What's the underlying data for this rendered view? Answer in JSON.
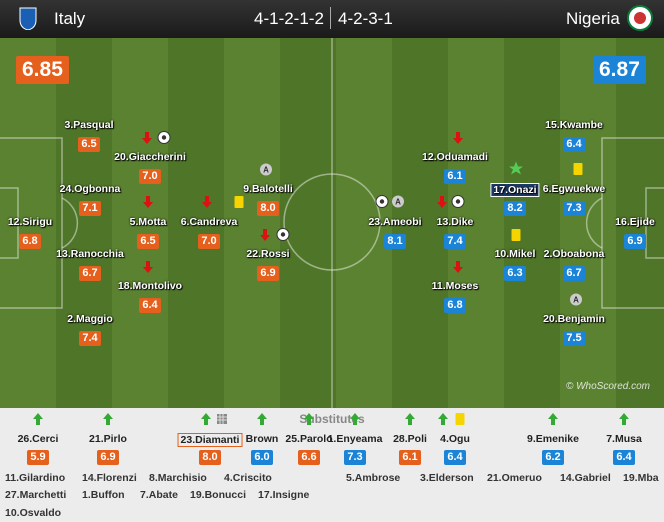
{
  "header": {
    "home_team": "Italy",
    "home_formation": "4-1-2-1-2",
    "away_formation": "4-2-3-1",
    "away_team": "Nigeria",
    "home_rating": "6.85",
    "away_rating": "6.87"
  },
  "home_players": [
    {
      "name": "3.Pasqual",
      "rating": "6.5"
    },
    {
      "name": "20.Giaccherini",
      "rating": "7.0"
    },
    {
      "name": "24.Ogbonna",
      "rating": "7.1"
    },
    {
      "name": "12.Sirigu",
      "rating": "6.8"
    },
    {
      "name": "5.Motta",
      "rating": "6.5"
    },
    {
      "name": "6.Candreva",
      "rating": "7.0"
    },
    {
      "name": "9.Balotelli",
      "rating": "8.0"
    },
    {
      "name": "13.Ranocchia",
      "rating": "6.7"
    },
    {
      "name": "22.Rossi",
      "rating": "6.9"
    },
    {
      "name": "18.Montolivo",
      "rating": "6.4"
    },
    {
      "name": "2.Maggio",
      "rating": "7.4"
    }
  ],
  "away_players": [
    {
      "name": "15.Kwambe",
      "rating": "6.4"
    },
    {
      "name": "12.Oduamadi",
      "rating": "6.1"
    },
    {
      "name": "17.Onazi",
      "rating": "8.2"
    },
    {
      "name": "6.Egwuekwe",
      "rating": "7.3"
    },
    {
      "name": "23.Ameobi",
      "rating": "8.1"
    },
    {
      "name": "13.Dike",
      "rating": "7.4"
    },
    {
      "name": "16.Ejide",
      "rating": "6.9"
    },
    {
      "name": "10.Mikel",
      "rating": "6.3"
    },
    {
      "name": "2.Oboabona",
      "rating": "6.7"
    },
    {
      "name": "11.Moses",
      "rating": "6.8"
    },
    {
      "name": "20.Benjamin",
      "rating": "7.5"
    }
  ],
  "substitutes": {
    "title": "Substitutes",
    "home": [
      {
        "name": "26.Cerci",
        "rating": "5.9"
      },
      {
        "name": "21.Pirlo",
        "rating": "6.9"
      },
      {
        "name": "23.Diamanti",
        "rating": "8.0"
      },
      {
        "name": "25.Parolo",
        "rating": "6.6"
      },
      {
        "name": "28.Poli",
        "rating": "6.1"
      }
    ],
    "away": [
      {
        "name": "Brown",
        "rating": "6.0"
      },
      {
        "name": "1.Enyeama",
        "rating": "7.3"
      },
      {
        "name": "4.Ogu",
        "rating": "6.4"
      },
      {
        "name": "9.Emenike",
        "rating": "6.2"
      },
      {
        "name": "7.Musa",
        "rating": "6.4"
      }
    ]
  },
  "unused": {
    "home": [
      "11.Gilardino",
      "14.Florenzi",
      "8.Marchisio",
      "4.Criscito",
      "27.Marchetti",
      "1.Buffon",
      "7.Abate",
      "19.Bonucci",
      "17.Insigne",
      "10.Osvaldo"
    ],
    "away": [
      "5.Ambrose",
      "3.Elderson",
      "21.Omeruo",
      "14.Gabriel",
      "19.Mba"
    ]
  },
  "watermark": "© WhoScored.com"
}
